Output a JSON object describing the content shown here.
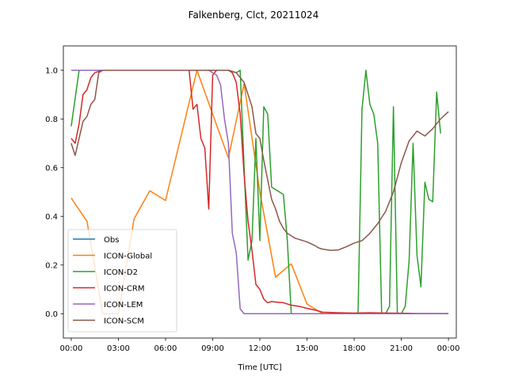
{
  "chart_data": {
    "type": "line",
    "title": "Falkenberg, Clct, 20211024",
    "xlabel": "Time [UTC]",
    "ylabel": "",
    "xlim": [
      -0.5,
      24.5
    ],
    "ylim": [
      -0.1,
      1.1
    ],
    "x_ticks": [
      {
        "v": 0,
        "label": "00:00"
      },
      {
        "v": 3,
        "label": "03:00"
      },
      {
        "v": 6,
        "label": "06:00"
      },
      {
        "v": 9,
        "label": "09:00"
      },
      {
        "v": 12,
        "label": "12:00"
      },
      {
        "v": 15,
        "label": "15:00"
      },
      {
        "v": 18,
        "label": "18:00"
      },
      {
        "v": 21,
        "label": "21:00"
      },
      {
        "v": 24,
        "label": "00:00"
      }
    ],
    "y_ticks": [
      {
        "v": 0.0,
        "label": "0.0"
      },
      {
        "v": 0.2,
        "label": "0.2"
      },
      {
        "v": 0.4,
        "label": "0.4"
      },
      {
        "v": 0.6,
        "label": "0.6"
      },
      {
        "v": 0.8,
        "label": "0.8"
      },
      {
        "v": 1.0,
        "label": "1.0"
      }
    ],
    "legend_position": "lower-left",
    "series": [
      {
        "name": "Obs",
        "color": "#1f77b4",
        "points": []
      },
      {
        "name": "ICON-Global",
        "color": "#ff7f0e",
        "points": [
          [
            0,
            0.475
          ],
          [
            1,
            0.38
          ],
          [
            2,
            0.0
          ],
          [
            3,
            0.0
          ],
          [
            4,
            0.39
          ],
          [
            5,
            0.505
          ],
          [
            6,
            0.465
          ],
          [
            8,
            1.0
          ],
          [
            10,
            0.64
          ],
          [
            11,
            0.945
          ],
          [
            12,
            0.5
          ],
          [
            13,
            0.15
          ],
          [
            14,
            0.205
          ],
          [
            15,
            0.04
          ],
          [
            16,
            0.0
          ],
          [
            17,
            0.0
          ],
          [
            18,
            0.0
          ],
          [
            19,
            0.0
          ],
          [
            20,
            0.0
          ],
          [
            21,
            0.0
          ],
          [
            22,
            0.0
          ],
          [
            23,
            0.0
          ],
          [
            24,
            0.0
          ]
        ]
      },
      {
        "name": "ICON-D2",
        "color": "#2ca02c",
        "points": [
          [
            0,
            0.77
          ],
          [
            0.5,
            1.0
          ],
          [
            1,
            1.0
          ],
          [
            2,
            1.0
          ],
          [
            3,
            1.0
          ],
          [
            4,
            1.0
          ],
          [
            5,
            1.0
          ],
          [
            6,
            1.0
          ],
          [
            7,
            1.0
          ],
          [
            8,
            1.0
          ],
          [
            9,
            1.0
          ],
          [
            10,
            1.0
          ],
          [
            10.5,
            0.99
          ],
          [
            10.75,
            1.0
          ],
          [
            11,
            0.6
          ],
          [
            11.25,
            0.22
          ],
          [
            11.5,
            0.3
          ],
          [
            11.75,
            0.72
          ],
          [
            12,
            0.3
          ],
          [
            12.25,
            0.85
          ],
          [
            12.5,
            0.82
          ],
          [
            12.75,
            0.52
          ],
          [
            13,
            0.51
          ],
          [
            13.5,
            0.49
          ],
          [
            13.75,
            0.3
          ],
          [
            14,
            0.0
          ],
          [
            15,
            0.0
          ],
          [
            16,
            0.0
          ],
          [
            17,
            0.0
          ],
          [
            18,
            0.0
          ],
          [
            18.25,
            0.0
          ],
          [
            18.5,
            0.84
          ],
          [
            18.75,
            1.0
          ],
          [
            19,
            0.86
          ],
          [
            19.25,
            0.82
          ],
          [
            19.5,
            0.7
          ],
          [
            19.75,
            0.0
          ],
          [
            20,
            0.0
          ],
          [
            20.25,
            0.03
          ],
          [
            20.5,
            0.85
          ],
          [
            20.75,
            0.0
          ],
          [
            21,
            0.0
          ],
          [
            21.25,
            0.03
          ],
          [
            21.5,
            0.22
          ],
          [
            21.75,
            0.7
          ],
          [
            22,
            0.24
          ],
          [
            22.25,
            0.11
          ],
          [
            22.5,
            0.54
          ],
          [
            22.75,
            0.47
          ],
          [
            23,
            0.46
          ],
          [
            23.25,
            0.91
          ],
          [
            23.5,
            0.74
          ]
        ]
      },
      {
        "name": "ICON-CRM",
        "color": "#d62728",
        "points": [
          [
            0,
            0.72
          ],
          [
            0.25,
            0.7
          ],
          [
            0.5,
            0.78
          ],
          [
            0.75,
            0.9
          ],
          [
            1,
            0.92
          ],
          [
            1.25,
            0.97
          ],
          [
            1.5,
            0.99
          ],
          [
            2,
            1.0
          ],
          [
            3,
            1.0
          ],
          [
            4,
            1.0
          ],
          [
            5,
            1.0
          ],
          [
            6,
            1.0
          ],
          [
            7,
            1.0
          ],
          [
            7.5,
            1.0
          ],
          [
            7.75,
            0.84
          ],
          [
            8,
            0.86
          ],
          [
            8.25,
            0.72
          ],
          [
            8.5,
            0.68
          ],
          [
            8.75,
            0.43
          ],
          [
            9,
            0.98
          ],
          [
            9.25,
            1.0
          ],
          [
            10,
            1.0
          ],
          [
            10.25,
            0.99
          ],
          [
            10.5,
            0.95
          ],
          [
            10.75,
            0.82
          ],
          [
            11,
            0.57
          ],
          [
            11.25,
            0.38
          ],
          [
            11.5,
            0.26
          ],
          [
            11.75,
            0.12
          ],
          [
            12,
            0.1
          ],
          [
            12.25,
            0.06
          ],
          [
            12.5,
            0.045
          ],
          [
            12.75,
            0.05
          ],
          [
            13,
            0.048
          ],
          [
            13.5,
            0.045
          ],
          [
            14,
            0.035
          ],
          [
            14.5,
            0.03
          ],
          [
            15,
            0.022
          ],
          [
            15.5,
            0.015
          ],
          [
            16,
            0.006
          ],
          [
            17,
            0.004
          ],
          [
            18,
            0.003
          ],
          [
            19,
            0.004
          ],
          [
            20,
            0.003
          ],
          [
            21,
            0.002
          ],
          [
            22,
            0.001
          ],
          [
            23,
            0.001
          ],
          [
            24,
            0.001
          ]
        ]
      },
      {
        "name": "ICON-LEM",
        "color": "#9467bd",
        "points": [
          [
            0,
            1.0
          ],
          [
            1,
            1.0
          ],
          [
            2,
            1.0
          ],
          [
            3,
            1.0
          ],
          [
            4,
            1.0
          ],
          [
            5,
            1.0
          ],
          [
            6,
            1.0
          ],
          [
            7,
            1.0
          ],
          [
            8,
            1.0
          ],
          [
            8.75,
            1.0
          ],
          [
            9,
            0.99
          ],
          [
            9.25,
            0.98
          ],
          [
            9.5,
            0.94
          ],
          [
            9.75,
            0.8
          ],
          [
            10,
            0.7
          ],
          [
            10.25,
            0.33
          ],
          [
            10.5,
            0.25
          ],
          [
            10.75,
            0.02
          ],
          [
            11,
            0.0
          ],
          [
            12,
            0.0
          ],
          [
            13,
            0.0
          ],
          [
            14,
            0.0
          ],
          [
            15,
            0.0
          ],
          [
            16,
            0.0
          ],
          [
            17,
            0.0
          ],
          [
            18,
            0.0
          ],
          [
            19,
            0.0
          ],
          [
            20,
            0.0
          ],
          [
            21,
            0.0
          ],
          [
            22,
            0.0
          ],
          [
            23,
            0.0
          ],
          [
            24,
            0.0
          ]
        ]
      },
      {
        "name": "ICON-SCM",
        "color": "#8c564b",
        "points": [
          [
            0,
            0.7
          ],
          [
            0.25,
            0.65
          ],
          [
            0.5,
            0.72
          ],
          [
            0.75,
            0.79
          ],
          [
            1,
            0.81
          ],
          [
            1.25,
            0.86
          ],
          [
            1.5,
            0.88
          ],
          [
            1.75,
            0.99
          ],
          [
            2,
            1.0
          ],
          [
            3,
            1.0
          ],
          [
            4,
            1.0
          ],
          [
            5,
            1.0
          ],
          [
            6,
            1.0
          ],
          [
            7,
            1.0
          ],
          [
            8,
            1.0
          ],
          [
            9,
            1.0
          ],
          [
            10,
            1.0
          ],
          [
            10.5,
            0.99
          ],
          [
            11,
            0.95
          ],
          [
            11.5,
            0.85
          ],
          [
            11.75,
            0.74
          ],
          [
            12,
            0.72
          ],
          [
            12.25,
            0.63
          ],
          [
            12.5,
            0.55
          ],
          [
            12.75,
            0.47
          ],
          [
            13,
            0.43
          ],
          [
            13.25,
            0.38
          ],
          [
            13.5,
            0.35
          ],
          [
            13.75,
            0.33
          ],
          [
            14,
            0.32
          ],
          [
            14.25,
            0.31
          ],
          [
            14.5,
            0.305
          ],
          [
            15,
            0.295
          ],
          [
            15.5,
            0.28
          ],
          [
            15.75,
            0.27
          ],
          [
            16,
            0.265
          ],
          [
            16.5,
            0.26
          ],
          [
            17,
            0.262
          ],
          [
            17.5,
            0.275
          ],
          [
            18,
            0.29
          ],
          [
            18.5,
            0.3
          ],
          [
            19,
            0.33
          ],
          [
            19.5,
            0.37
          ],
          [
            20,
            0.42
          ],
          [
            20.5,
            0.5
          ],
          [
            21,
            0.62
          ],
          [
            21.5,
            0.71
          ],
          [
            22,
            0.75
          ],
          [
            22.5,
            0.73
          ],
          [
            23,
            0.76
          ],
          [
            23.5,
            0.8
          ],
          [
            24,
            0.83
          ]
        ]
      }
    ]
  }
}
